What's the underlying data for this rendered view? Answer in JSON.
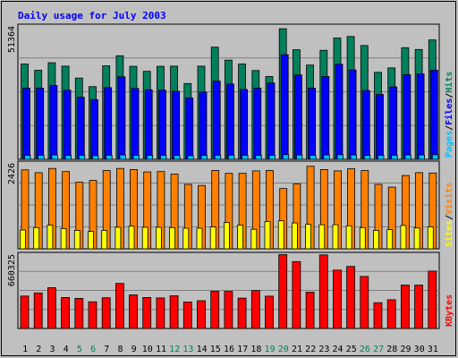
{
  "chart_data": {
    "type": "bar",
    "title": "Daily usage for July 2003",
    "categories": [
      "1",
      "2",
      "3",
      "4",
      "5",
      "6",
      "7",
      "8",
      "9",
      "10",
      "11",
      "12",
      "13",
      "14",
      "15",
      "16",
      "17",
      "18",
      "19",
      "20",
      "21",
      "22",
      "23",
      "24",
      "25",
      "26",
      "27",
      "28",
      "29",
      "30",
      "31"
    ],
    "weekend_days": [
      5,
      6,
      12,
      13,
      19,
      20,
      26,
      27
    ],
    "panels": [
      {
        "id": "hits-files-pages",
        "ymax_label": "51364",
        "ymax": 51364,
        "legend": [
          "Pages",
          "/",
          "Files",
          "/",
          "Hits"
        ],
        "series": [
          {
            "name": "Hits",
            "color": "#00805c",
            "values": [
              36700,
              34300,
              37200,
              35900,
              31300,
              28000,
              36000,
              39900,
              35800,
              33900,
              35800,
              35900,
              29200,
              35900,
              43200,
              38200,
              36700,
              34200,
              31900,
              50300,
              42200,
              36300,
              42000,
              46700,
              47300,
              43800,
              33500,
              35200,
              43000,
              42300,
              46000
            ]
          },
          {
            "name": "Files",
            "color": "#0000ff",
            "values": [
              27400,
              27400,
              28400,
              26600,
              23900,
              23000,
              27600,
              31800,
              27300,
              26800,
              26600,
              26200,
              23600,
              25900,
              30100,
              29000,
              26900,
              27400,
              29400,
              40300,
              32500,
              27400,
              31900,
              36600,
              34400,
              26500,
              25000,
              27900,
              32600,
              32900,
              34300
            ]
          },
          {
            "name": "Pages",
            "color": "#00c0ff",
            "values": [
              1500,
              1600,
              1700,
              1500,
              1600,
              1400,
              1600,
              1700,
              1600,
              1500,
              1500,
              1500,
              1400,
              1500,
              1600,
              1600,
              1500,
              1500,
              1600,
              1800,
              1700,
              1600,
              1700,
              1800,
              1700,
              1500,
              1500,
              1600,
              1700,
              1700,
              1800
            ]
          }
        ]
      },
      {
        "id": "visits-sites",
        "ymax_label": "2426",
        "ymax": 2426,
        "legend": [
          "Sites",
          "/",
          "Visits"
        ],
        "series": [
          {
            "name": "Visits",
            "color": "#ff8000",
            "values": [
              2230,
              2150,
              2270,
              2180,
              1880,
              1930,
              2210,
              2270,
              2240,
              2170,
              2180,
              2110,
              1820,
              1790,
              2210,
              2130,
              2130,
              2200,
              2210,
              1700,
              1830,
              2330,
              2240,
              2200,
              2260,
              2210,
              1820,
              1740,
              2070,
              2150,
              2140
            ]
          },
          {
            "name": "Sites",
            "color": "#ffff00",
            "values": [
              530,
              600,
              670,
              570,
              520,
              490,
              520,
              610,
              640,
              610,
              610,
              600,
              580,
              580,
              620,
              740,
              670,
              550,
              770,
              790,
              730,
              690,
              680,
              680,
              650,
              600,
              520,
              540,
              660,
              590,
              620
            ]
          }
        ]
      },
      {
        "id": "kbytes",
        "ymax_label": "660325",
        "ymax": 660325,
        "legend": [
          "KBytes"
        ],
        "series": [
          {
            "name": "KBytes",
            "color": "#ff0000",
            "values": [
              288000,
              316000,
              363000,
              275000,
              267000,
              237000,
              273000,
              400000,
              298000,
              275000,
              271000,
              290000,
              235000,
              247000,
              330000,
              329000,
              270000,
              337000,
              287000,
              656000,
              594000,
              323000,
              654000,
              519000,
              551000,
              462000,
              229000,
              255000,
              386000,
              385000,
              510000
            ]
          }
        ]
      }
    ]
  }
}
